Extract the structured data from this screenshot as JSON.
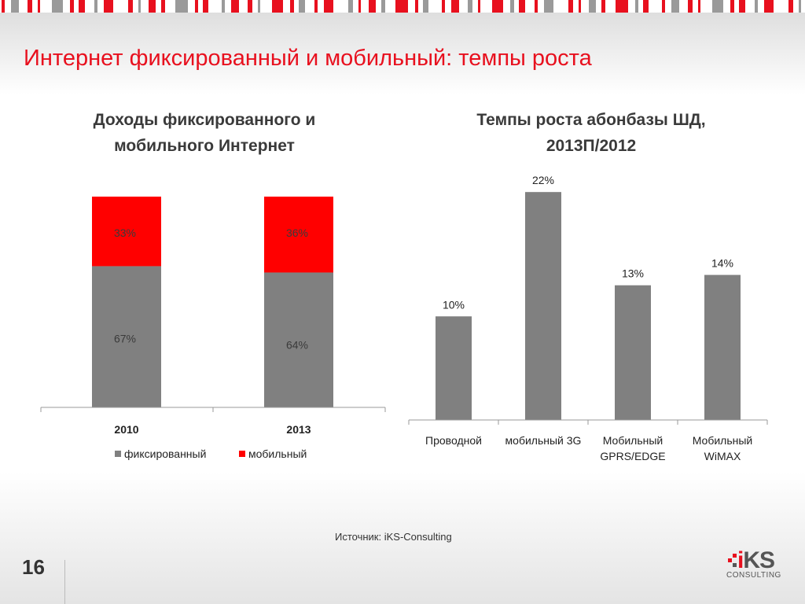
{
  "slide": {
    "title": "Интернет фиксированный и мобильный: темпы роста",
    "source": "Источник: iKS-Consulting",
    "page_number": "16",
    "logo_text": "iKS",
    "logo_subtext": "CONSULTING"
  },
  "colors": {
    "accent": "#e8101e",
    "fixed": "#808080",
    "mobile": "#ff0000",
    "bar": "#808080"
  },
  "chart_data": [
    {
      "type": "bar",
      "stacked": true,
      "title_lines": [
        "Доходы фиксированного и",
        "мобильного Интернет"
      ],
      "categories": [
        "2010",
        "2013"
      ],
      "series": [
        {
          "name": "фиксированный",
          "values": [
            67,
            64
          ],
          "labels": [
            "67%",
            "64%"
          ]
        },
        {
          "name": "мобильный",
          "values": [
            33,
            36
          ],
          "labels": [
            "33%",
            "36%"
          ]
        }
      ],
      "ylim": [
        0,
        100
      ],
      "legend": "bottom"
    },
    {
      "type": "bar",
      "title_lines": [
        "Темпы роста абонбазы ШД,",
        "2013П/2012"
      ],
      "categories": [
        [
          "Проводной"
        ],
        [
          "мобильный 3G"
        ],
        [
          "Мобильный",
          "GPRS/EDGE"
        ],
        [
          "Мобильный",
          "WiMAX"
        ]
      ],
      "values": [
        10,
        22,
        13,
        14
      ],
      "labels": [
        "10%",
        "22%",
        "13%",
        "14%"
      ],
      "ylim": [
        0,
        23
      ],
      "legend": "none"
    }
  ]
}
